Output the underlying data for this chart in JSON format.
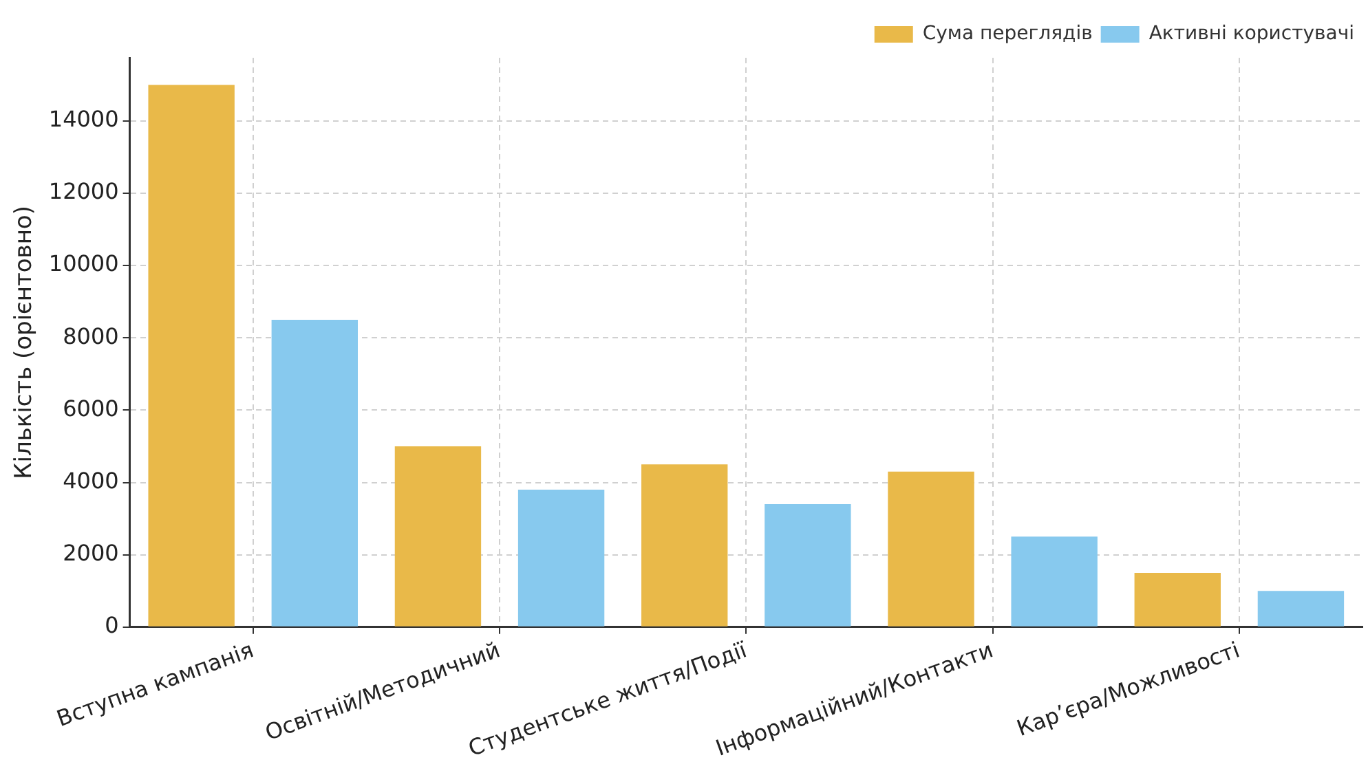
{
  "chart_data": {
    "type": "bar",
    "ylabel": "Кількість (орієнтовно)",
    "categories": [
      "Вступна кампанія",
      "Освітній/Методичний",
      "Студентське життя/Події",
      "Інформаційний/Контакти",
      "Кар’єра/Можливості"
    ],
    "series": [
      {
        "name": "Сума переглядів",
        "color": "#e9b949",
        "values": [
          15000,
          5000,
          4500,
          4300,
          1500
        ]
      },
      {
        "name": "Активні користувачі",
        "color": "#87c9ee",
        "values": [
          8500,
          3800,
          3400,
          2500,
          1000
        ]
      }
    ],
    "ylim": [
      0,
      15750
    ],
    "yticks": [
      0,
      2000,
      4000,
      6000,
      8000,
      10000,
      12000,
      14000
    ],
    "grid": true,
    "legend": "top right"
  }
}
